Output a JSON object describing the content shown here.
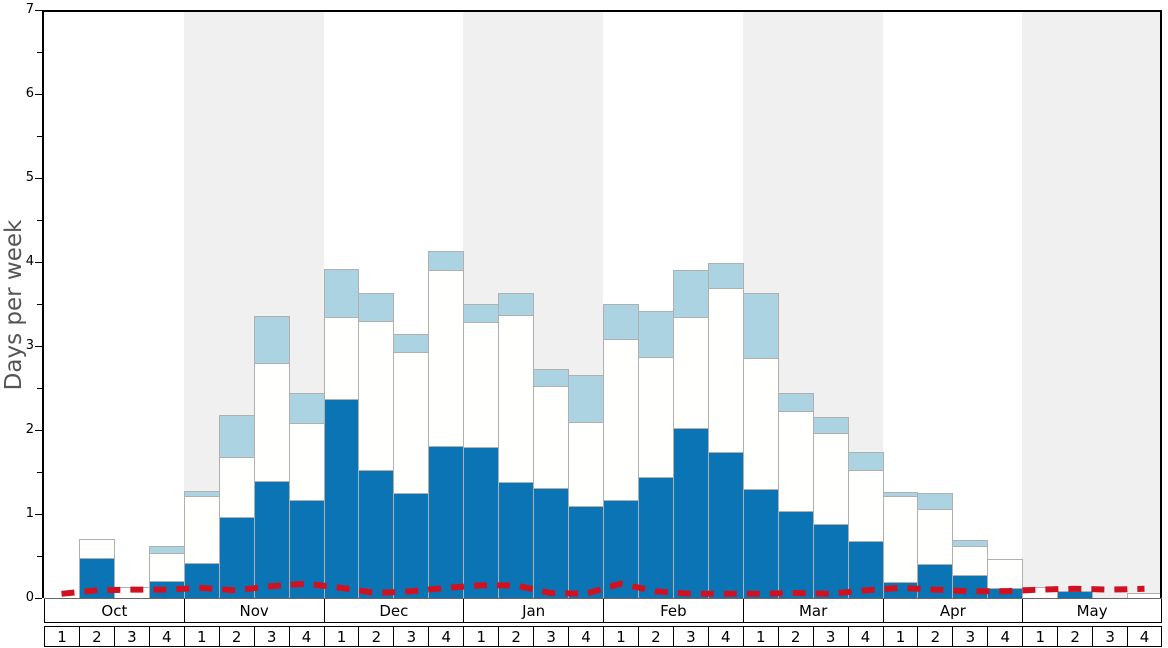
{
  "chart_data": {
    "type": "bar",
    "subtype": "stacked-bars-with-dashed-line",
    "title": "",
    "ylabel": "Days per week",
    "xlabel": "",
    "ylim": [
      0,
      7
    ],
    "ytick_step": 1,
    "ytick_minor_step": 0.5,
    "grid": false,
    "legend_position": "none",
    "months": [
      "Oct",
      "Nov",
      "Dec",
      "Jan",
      "Feb",
      "Mar",
      "Apr",
      "May"
    ],
    "week_labels": [
      "1",
      "2",
      "3",
      "4"
    ],
    "weeks_per_month": 4,
    "band_shading": [
      "white",
      "gray",
      "white",
      "gray",
      "white",
      "gray",
      "white",
      "gray"
    ],
    "series": [
      {
        "name": "dark-blue-days",
        "color": "#0b74b5",
        "cumulative_top": [
          0,
          0.48,
          0,
          0.2,
          0.42,
          0.97,
          1.39,
          1.17,
          2.37,
          1.52,
          1.25,
          1.81,
          1.8,
          1.38,
          1.31,
          1.1,
          1.17,
          1.44,
          2.02,
          1.74,
          1.3,
          1.04,
          0.88,
          0.68,
          0.19,
          0.4,
          0.27,
          0.12,
          0,
          0.08,
          0,
          0
        ]
      },
      {
        "name": "white-days",
        "color": "#fffffe",
        "cumulative_top": [
          0,
          0.7,
          0.13,
          0.54,
          1.22,
          1.68,
          2.8,
          2.08,
          3.35,
          3.3,
          2.93,
          3.91,
          3.29,
          3.37,
          2.52,
          2.1,
          3.08,
          2.87,
          3.35,
          3.69,
          2.86,
          2.23,
          1.96,
          1.52,
          1.21,
          1.06,
          0.62,
          0.47,
          0.13,
          0.08,
          0,
          0.06
        ]
      },
      {
        "name": "light-blue-days",
        "color": "#abd3e1",
        "cumulative_top": [
          0,
          0.7,
          0.13,
          0.62,
          1.27,
          2.18,
          3.36,
          2.44,
          3.92,
          3.63,
          3.14,
          4.13,
          3.5,
          3.63,
          2.73,
          2.65,
          3.5,
          3.42,
          3.91,
          3.99,
          3.63,
          2.44,
          2.15,
          1.74,
          1.26,
          1.25,
          0.69,
          0.47,
          0.13,
          0.08,
          0,
          0.06
        ]
      }
    ],
    "line_series": {
      "name": "red-dashed-line",
      "color": "#d01220",
      "values": [
        0.05,
        0.09,
        0.1,
        0.1,
        0.12,
        0.09,
        0.14,
        0.17,
        0.12,
        0.06,
        0.08,
        0.12,
        0.15,
        0.15,
        0.06,
        0.05,
        0.17,
        0.08,
        0.05,
        0.05,
        0.05,
        0.06,
        0.05,
        0.09,
        0.12,
        0.1,
        0.08,
        0.08,
        0.1,
        0.11,
        0.1,
        0.11
      ]
    }
  },
  "yticks": [
    "0",
    "1",
    "2",
    "3",
    "4",
    "5",
    "6",
    "7"
  ],
  "colors": {
    "bar_border": "#b0b0b0",
    "band_gray": "#f0f0f0",
    "axis": "#000000",
    "baseline": "#666666",
    "ylabel_text": "#555555"
  }
}
